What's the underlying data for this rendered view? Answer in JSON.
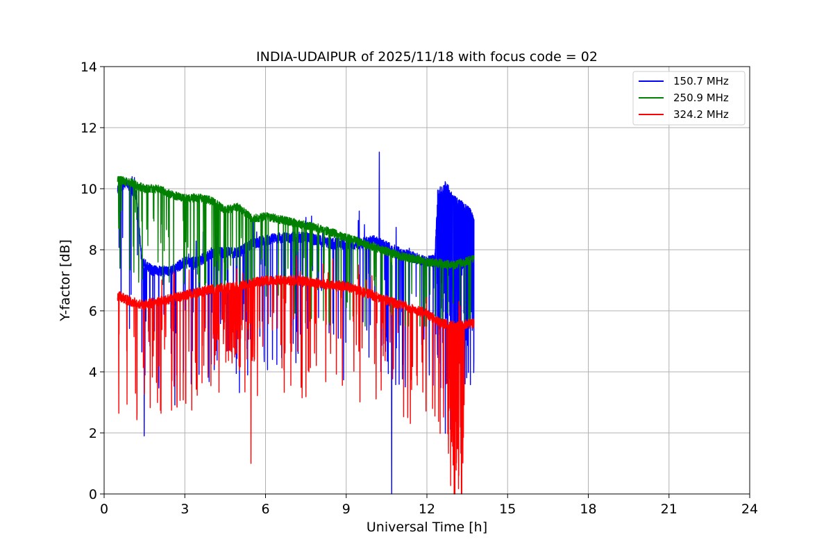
{
  "chart_data": {
    "type": "line",
    "title": "INDIA-UDAIPUR of 2025/11/18 with focus code = 02",
    "xlabel": "Universal Time [h]",
    "ylabel": "Y-factor [dB]",
    "xlim": [
      0,
      24
    ],
    "ylim": [
      0,
      14
    ],
    "xticks": [
      0,
      3,
      6,
      9,
      12,
      15,
      18,
      21,
      24
    ],
    "yticks": [
      0,
      2,
      4,
      6,
      8,
      10,
      12,
      14
    ],
    "grid": true,
    "legend_position": "top-right",
    "series": [
      {
        "name": "150.7 MHz",
        "color": "#0000ff",
        "baseline": [
          [
            0.5,
            10.0
          ],
          [
            0.8,
            10.2
          ],
          [
            1.2,
            9.8
          ],
          [
            1.4,
            7.6
          ],
          [
            1.8,
            7.3
          ],
          [
            2.5,
            7.3
          ],
          [
            3.0,
            7.6
          ],
          [
            3.5,
            7.6
          ],
          [
            4.0,
            7.9
          ],
          [
            5.0,
            7.9
          ],
          [
            5.5,
            8.2
          ],
          [
            6.5,
            8.4
          ],
          [
            7.5,
            8.4
          ],
          [
            8.5,
            8.2
          ],
          [
            9.5,
            8.2
          ],
          [
            10.0,
            8.3
          ],
          [
            11.0,
            7.9
          ],
          [
            12.0,
            7.6
          ],
          [
            12.3,
            7.7
          ],
          [
            12.4,
            9.8
          ],
          [
            12.7,
            10.1
          ],
          [
            13.0,
            9.6
          ],
          [
            13.5,
            9.3
          ],
          [
            13.75,
            9.0
          ]
        ],
        "max_y": 11.2,
        "min_y": 0.0
      },
      {
        "name": "250.9 MHz",
        "color": "#008000",
        "baseline": [
          [
            0.5,
            10.3
          ],
          [
            1.0,
            10.2
          ],
          [
            1.5,
            10.0
          ],
          [
            2.0,
            10.0
          ],
          [
            2.5,
            9.8
          ],
          [
            3.0,
            9.7
          ],
          [
            3.5,
            9.7
          ],
          [
            4.0,
            9.6
          ],
          [
            4.5,
            9.3
          ],
          [
            5.0,
            9.4
          ],
          [
            5.5,
            9.0
          ],
          [
            6.0,
            9.1
          ],
          [
            7.0,
            8.9
          ],
          [
            8.0,
            8.7
          ],
          [
            9.0,
            8.4
          ],
          [
            10.0,
            8.1
          ],
          [
            11.0,
            7.8
          ],
          [
            12.0,
            7.6
          ],
          [
            13.0,
            7.5
          ],
          [
            13.75,
            7.7
          ]
        ],
        "max_y": 10.4,
        "min_y": 5.5
      },
      {
        "name": "324.2 MHz",
        "color": "#ff0000",
        "baseline": [
          [
            0.5,
            6.5
          ],
          [
            1.0,
            6.3
          ],
          [
            1.5,
            6.2
          ],
          [
            2.0,
            6.3
          ],
          [
            3.0,
            6.5
          ],
          [
            3.5,
            6.6
          ],
          [
            4.0,
            6.7
          ],
          [
            5.0,
            6.8
          ],
          [
            6.0,
            7.0
          ],
          [
            7.0,
            7.0
          ],
          [
            8.0,
            6.9
          ],
          [
            9.0,
            6.8
          ],
          [
            10.0,
            6.5
          ],
          [
            11.0,
            6.2
          ],
          [
            12.0,
            5.9
          ],
          [
            12.5,
            5.6
          ],
          [
            13.0,
            5.5
          ],
          [
            13.75,
            5.6
          ]
        ],
        "max_y": 8.0,
        "min_y": 0.0
      }
    ]
  }
}
